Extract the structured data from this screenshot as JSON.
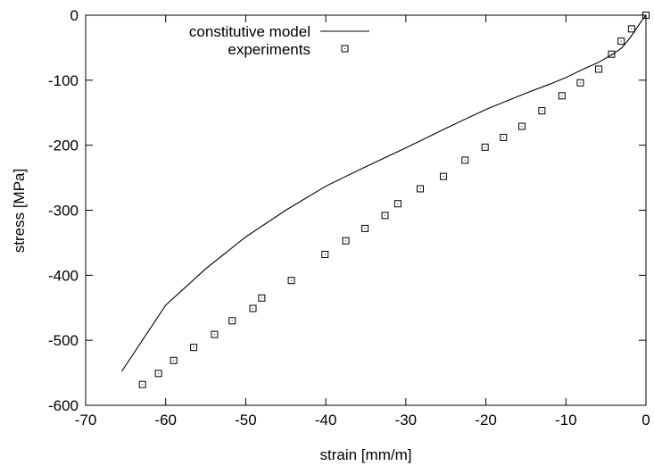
{
  "chart_data": {
    "type": "line",
    "title": "",
    "xlabel": "strain [mm/m]",
    "ylabel": "stress [MPa]",
    "xlim": [
      -70,
      0
    ],
    "ylim": [
      -600,
      0
    ],
    "xticks": [
      -70,
      -60,
      -50,
      -40,
      -30,
      -20,
      -10,
      0
    ],
    "yticks": [
      0,
      -100,
      -200,
      -300,
      -400,
      -500,
      -600
    ],
    "grid": false,
    "legend_position": "top-left",
    "series": [
      {
        "name": "constitutive model",
        "style": "line",
        "color": "#000000",
        "x": [
          0,
          -0.5,
          -1,
          -2,
          -3,
          -4,
          -5,
          -6,
          -8,
          -10,
          -12,
          -15,
          -20,
          -25,
          -30,
          -35,
          -40,
          -45,
          -50,
          -55,
          -60,
          -65.5
        ],
        "y": [
          0,
          -8,
          -17,
          -35,
          -50,
          -59,
          -66,
          -73,
          -84,
          -96,
          -106,
          -120,
          -145,
          -174,
          -204,
          -233,
          -263,
          -300,
          -341,
          -390,
          -446,
          -548
        ]
      },
      {
        "name": "experiments",
        "style": "markers",
        "marker": "square-dot",
        "color": "#000000",
        "x": [
          0,
          -1.8,
          -3.1,
          -4.3,
          -5.9,
          -8.2,
          -10.5,
          -13.0,
          -15.5,
          -17.8,
          -20.1,
          -22.6,
          -25.3,
          -28.2,
          -31.0,
          -32.6,
          -35.1,
          -37.5,
          -40.1,
          -44.3,
          -48.0,
          -49.1,
          -51.7,
          -53.9,
          -56.5,
          -59.0,
          -60.9,
          -62.9
        ],
        "y": [
          0,
          -21,
          -40,
          -60,
          -83,
          -104,
          -124,
          -147,
          -171,
          -188,
          -203,
          -223,
          -248,
          -267,
          -290,
          -308,
          -328,
          -347,
          -368,
          -408,
          -435,
          -451,
          -470,
          -491,
          -511,
          -531,
          -551,
          -568
        ]
      }
    ]
  }
}
